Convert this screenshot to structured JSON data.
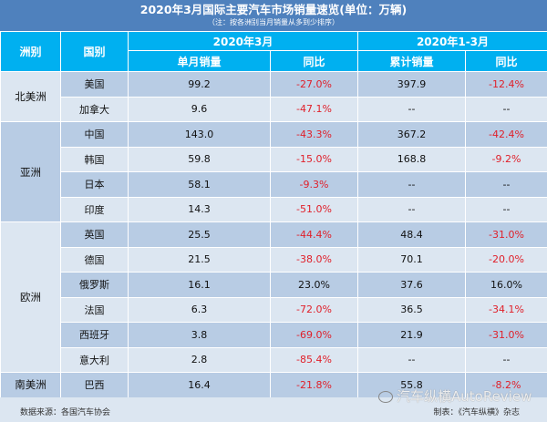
{
  "title": "2020年3月国际主要汽车市场销量速览(单位：万辆)",
  "subtitle": "（注：按各洲别当月销量从多到少排序）",
  "headers": {
    "continent": "洲别",
    "country": "国别",
    "march": "2020年3月",
    "q1": "2020年1-3月",
    "monthly_sales": "单月销量",
    "yoy": "同比",
    "cumulative_sales": "累计销量",
    "yoy2": "同比"
  },
  "continents": [
    "北美洲",
    "亚洲",
    "欧洲",
    "南美洲"
  ],
  "rows": [
    [
      "美国",
      "99.2",
      "-27.0%",
      "397.9",
      "-12.4%"
    ],
    [
      "加拿大",
      "9.6",
      "-47.1%",
      "--",
      "--"
    ],
    [
      "中国",
      "143.0",
      "-43.3%",
      "367.2",
      "-42.4%"
    ],
    [
      "韩国",
      "59.8",
      "-15.0%",
      "168.8",
      "-9.2%"
    ],
    [
      "日本",
      "58.1",
      "-9.3%",
      "--",
      "--"
    ],
    [
      "印度",
      "14.3",
      "-51.0%",
      "--",
      "--"
    ],
    [
      "英国",
      "25.5",
      "-44.4%",
      "48.4",
      "-31.0%"
    ],
    [
      "德国",
      "21.5",
      "-38.0%",
      "70.1",
      "-20.0%"
    ],
    [
      "俄罗斯",
      "16.1",
      "23.0%",
      "37.6",
      "16.0%"
    ],
    [
      "法国",
      "6.3",
      "-72.0%",
      "36.5",
      "-34.1%"
    ],
    [
      "西班牙",
      "3.8",
      "-69.0%",
      "21.9",
      "-31.0%"
    ],
    [
      "意大利",
      "2.8",
      "-85.4%",
      "--",
      "--"
    ],
    [
      "巴西",
      "16.4",
      "-21.8%",
      "55.8",
      "-8.2%"
    ]
  ],
  "footer": {
    "source": "数据来源：各国汽车协会",
    "maker": "制表：《汽车纵横》杂志"
  },
  "watermark": "汽车纵横AutoReview",
  "colors": {
    "title_bg": "#4F81BD",
    "header_bg": "#00B0F0",
    "negative": "#E0202A"
  }
}
